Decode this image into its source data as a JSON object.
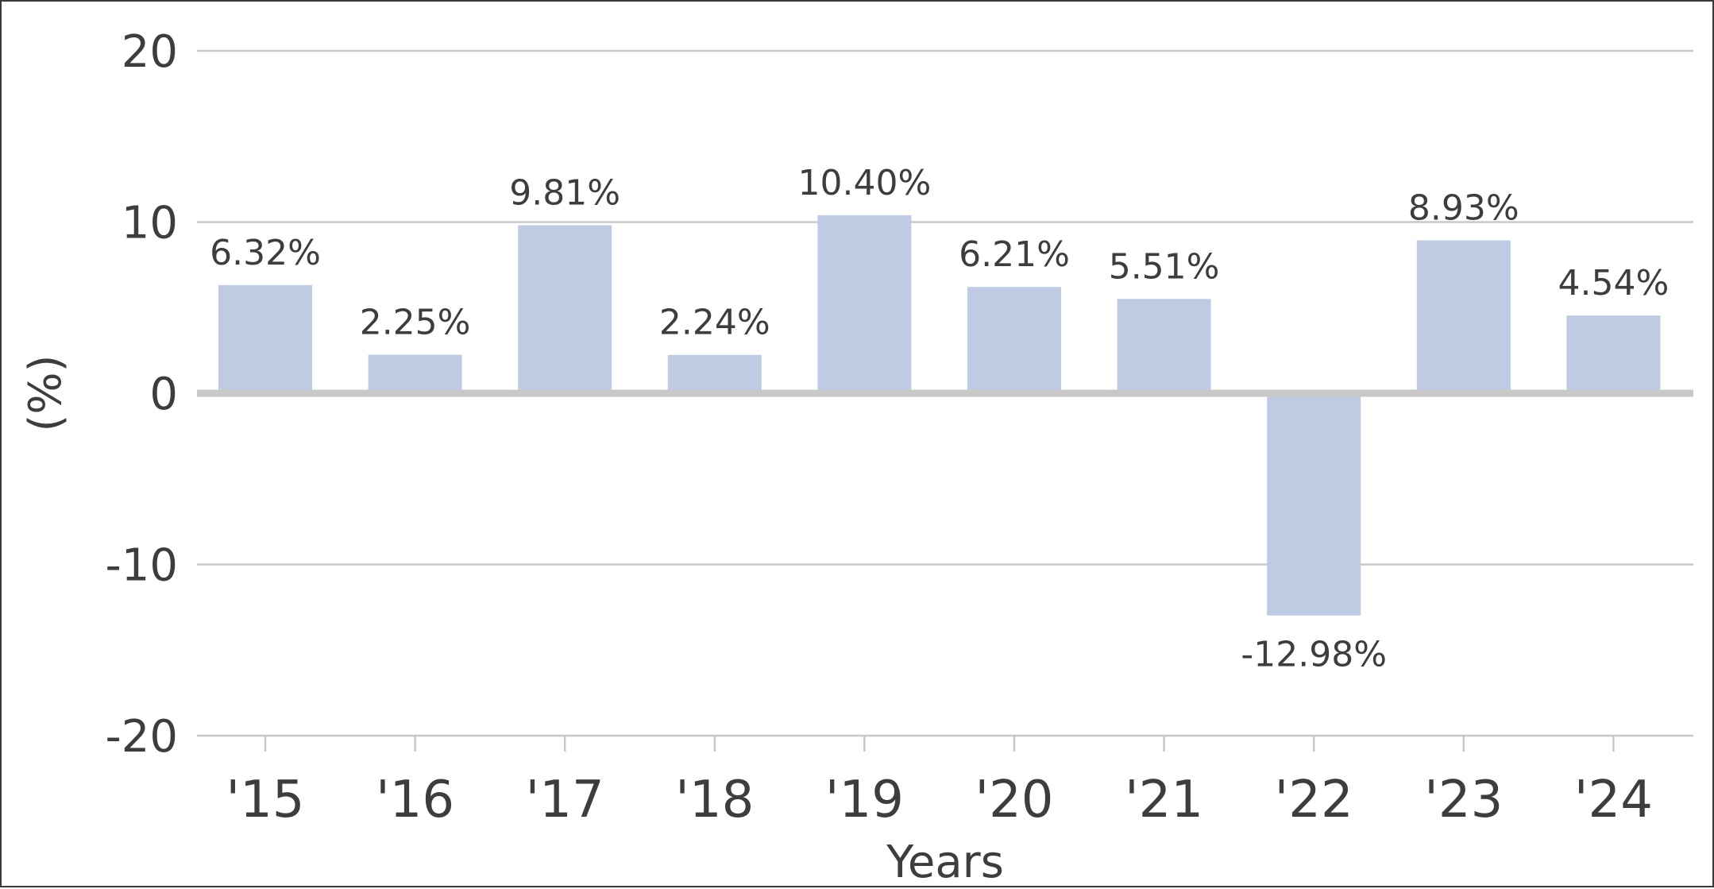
{
  "chart_data": {
    "type": "bar",
    "categories": [
      "'15",
      "'16",
      "'17",
      "'18",
      "'19",
      "'20",
      "'21",
      "'22",
      "'23",
      "'24"
    ],
    "values": [
      6.32,
      2.25,
      9.81,
      2.24,
      10.4,
      6.21,
      5.51,
      -12.98,
      8.93,
      4.54
    ],
    "data_labels": [
      "6.32%",
      "2.25%",
      "9.81%",
      "2.24%",
      "10.40%",
      "6.21%",
      "5.51%",
      "-12.98%",
      "8.93%",
      "4.54%"
    ],
    "title": "",
    "xlabel": "Years",
    "ylabel": "(%)",
    "ylim": [
      -20,
      20
    ],
    "yticks": [
      20,
      10,
      0,
      -10,
      -20
    ],
    "ytick_labels": [
      "20",
      "10",
      "0",
      "-10",
      "-20"
    ],
    "grid": true,
    "legend": "none",
    "bar_color": "#bfcbe3",
    "gridline_color": "#c8c8c8",
    "zero_line_color": "#c8c8c8",
    "text_color": "#3d3d3d"
  }
}
